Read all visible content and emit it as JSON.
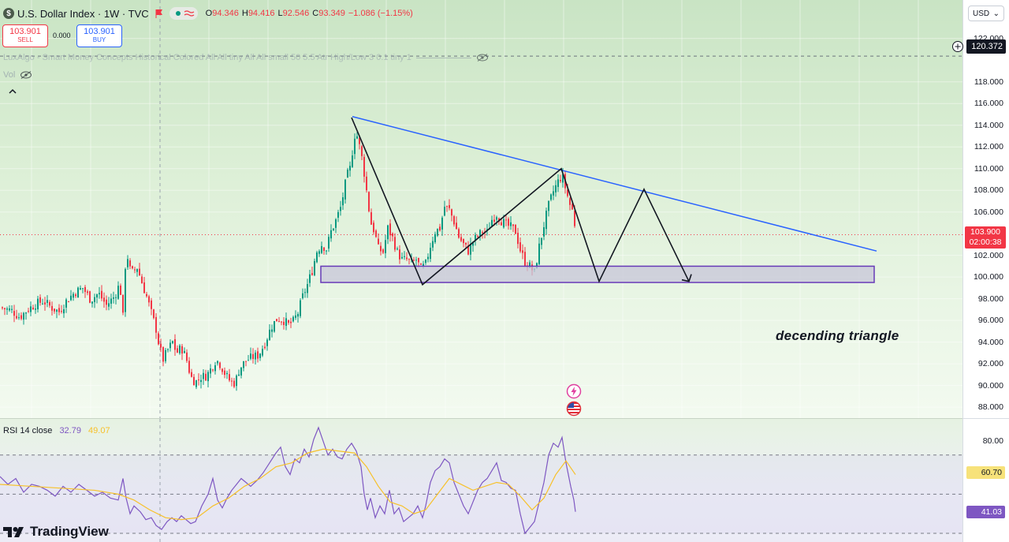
{
  "header": {
    "symbol_logo": "$",
    "symbol_title": "U.S. Dollar Index · 1W · TVC",
    "ohlc": [
      {
        "key": "O",
        "value": "94.346"
      },
      {
        "key": "H",
        "value": "94.416"
      },
      {
        "key": "L",
        "value": "92.546"
      },
      {
        "key": "C",
        "value": "93.349"
      },
      {
        "key": "",
        "value": "−1.086 (−1.15%)"
      }
    ],
    "status_icon": "waves-icon"
  },
  "trade": {
    "sell_price": "103.901",
    "sell_label": "SELL",
    "spread": "0.000",
    "buy_price": "103.901",
    "buy_label": "BUY"
  },
  "indicators": {
    "luxalgo": "LuxAlgo - Smart Money Concepts Historical Colored All All tiny All All small 50 5.5 Atr High/Low 3 0.1 tiny 1",
    "vol": "Vol"
  },
  "price_scale": {
    "currency": "USD",
    "crosshair_price": "120.372",
    "last_price": "103.900",
    "countdown": "02:00:38",
    "ticks": [
      "122.000",
      "118.000",
      "116.000",
      "114.000",
      "112.000",
      "110.000",
      "108.000",
      "106.000",
      "102.000",
      "100.000",
      "98.000",
      "96.000",
      "94.000",
      "92.000",
      "90.000",
      "88.000"
    ]
  },
  "annotation": {
    "pattern_label": "decending triangle"
  },
  "rsi": {
    "label": "RSI 14 close",
    "rsi_value": "32.79",
    "ma_value": "49.07",
    "scale_ticks": [
      "80.00"
    ],
    "ma_label": "60.70",
    "value_label": "41.03"
  },
  "branding": {
    "logo_text": "TradingView"
  },
  "colors": {
    "up": "#089981",
    "down": "#f23645",
    "trendline": "#2962ff",
    "rsi_line": "#7e57c2",
    "rsi_ma": "#f7c12a",
    "zone_border": "#673ab7"
  },
  "chart_data": {
    "type": "candlestick",
    "timeframe": "1W",
    "ylim": [
      87.5,
      123.0
    ],
    "close_path": [
      [
        0,
        97.2
      ],
      [
        15,
        96.9
      ],
      [
        25,
        96.3
      ],
      [
        35,
        97.0
      ],
      [
        45,
        97.5
      ],
      [
        55,
        97.8
      ],
      [
        65,
        97.2
      ],
      [
        75,
        96.8
      ],
      [
        85,
        97.9
      ],
      [
        95,
        98.6
      ],
      [
        105,
        99.0
      ],
      [
        115,
        97.9
      ],
      [
        125,
        98.5
      ],
      [
        135,
        97.4
      ],
      [
        145,
        98.2
      ],
      [
        152,
        99.4
      ],
      [
        156,
        96.3
      ],
      [
        160,
        102.6
      ],
      [
        166,
        100.3
      ],
      [
        174,
        100.9
      ],
      [
        180,
        99.5
      ],
      [
        186,
        98.2
      ],
      [
        192,
        96.7
      ],
      [
        198,
        95.2
      ],
      [
        202,
        93.6
      ],
      [
        207,
        92.4
      ],
      [
        213,
        93.3
      ],
      [
        219,
        94.0
      ],
      [
        224,
        93.0
      ],
      [
        230,
        93.5
      ],
      [
        236,
        92.6
      ],
      [
        242,
        90.8
      ],
      [
        248,
        90.3
      ],
      [
        255,
        90.8
      ],
      [
        262,
        90.9
      ],
      [
        268,
        91.6
      ],
      [
        274,
        92.4
      ],
      [
        280,
        91.9
      ],
      [
        286,
        91.0
      ],
      [
        292,
        90.4
      ],
      [
        298,
        90.2
      ],
      [
        304,
        91.6
      ],
      [
        312,
        92.3
      ],
      [
        320,
        92.6
      ],
      [
        328,
        92.8
      ],
      [
        336,
        93.9
      ],
      [
        344,
        95.4
      ],
      [
        352,
        96.2
      ],
      [
        360,
        96.0
      ],
      [
        366,
        95.6
      ],
      [
        372,
        95.9
      ],
      [
        378,
        96.7
      ],
      [
        384,
        98.2
      ],
      [
        390,
        99.3
      ],
      [
        396,
        100.6
      ],
      [
        402,
        102.4
      ],
      [
        408,
        103.0
      ],
      [
        414,
        102.6
      ],
      [
        420,
        104.2
      ],
      [
        426,
        105.2
      ],
      [
        432,
        106.4
      ],
      [
        436,
        107.8
      ],
      [
        440,
        109.3
      ],
      [
        444,
        110.0
      ],
      [
        448,
        112.1
      ],
      [
        451,
        113.6
      ],
      [
        455,
        112.4
      ],
      [
        459,
        111.0
      ],
      [
        462,
        109.6
      ],
      [
        466,
        107.4
      ],
      [
        470,
        105.1
      ],
      [
        475,
        104.2
      ],
      [
        480,
        102.6
      ],
      [
        486,
        102.3
      ],
      [
        492,
        104.5
      ],
      [
        498,
        103.6
      ],
      [
        504,
        102.3
      ],
      [
        510,
        101.6
      ],
      [
        516,
        101.6
      ],
      [
        522,
        101.3
      ],
      [
        528,
        101.6
      ],
      [
        534,
        100.7
      ],
      [
        540,
        101.2
      ],
      [
        546,
        102.9
      ],
      [
        552,
        104.2
      ],
      [
        558,
        104.5
      ],
      [
        564,
        106.5
      ],
      [
        570,
        106.2
      ],
      [
        576,
        105.1
      ],
      [
        582,
        103.7
      ],
      [
        588,
        103.0
      ],
      [
        594,
        102.4
      ],
      [
        600,
        103.3
      ],
      [
        606,
        103.8
      ],
      [
        612,
        104.2
      ],
      [
        618,
        104.1
      ],
      [
        624,
        105.3
      ],
      [
        630,
        105.8
      ],
      [
        636,
        105.2
      ],
      [
        642,
        104.8
      ],
      [
        648,
        104.6
      ],
      [
        654,
        104.2
      ],
      [
        660,
        102.5
      ],
      [
        666,
        101.4
      ],
      [
        672,
        101.0
      ],
      [
        678,
        100.4
      ],
      [
        684,
        102.8
      ],
      [
        690,
        104.8
      ],
      [
        696,
        106.6
      ],
      [
        702,
        107.9
      ],
      [
        708,
        108.8
      ],
      [
        713,
        109.4
      ],
      [
        718,
        108.0
      ],
      [
        724,
        106.4
      ],
      [
        728,
        105.9
      ],
      [
        730,
        103.9
      ]
    ],
    "trendline": [
      [
        447,
        114.8
      ],
      [
        1112,
        102.4
      ]
    ],
    "support_zone": {
      "x_start": 407,
      "x_end": 1109,
      "y_low": 99.5,
      "y_high": 101.0
    },
    "projection_path": [
      [
        446,
        114.7
      ],
      [
        536,
        99.3
      ],
      [
        712,
        110.0
      ],
      [
        760,
        99.6
      ],
      [
        817,
        108.1
      ],
      [
        874,
        99.6
      ]
    ],
    "rsi_ylim": [
      28,
      86
    ],
    "rsi_path": [
      [
        0,
        59
      ],
      [
        10,
        55
      ],
      [
        20,
        58
      ],
      [
        30,
        51
      ],
      [
        40,
        55
      ],
      [
        50,
        54
      ],
      [
        60,
        52
      ],
      [
        70,
        49
      ],
      [
        80,
        54
      ],
      [
        90,
        51
      ],
      [
        100,
        55
      ],
      [
        110,
        52
      ],
      [
        120,
        49
      ],
      [
        130,
        51
      ],
      [
        140,
        48
      ],
      [
        150,
        47
      ],
      [
        156,
        58
      ],
      [
        160,
        48
      ],
      [
        165,
        40
      ],
      [
        170,
        44
      ],
      [
        178,
        41
      ],
      [
        185,
        37
      ],
      [
        192,
        38
      ],
      [
        198,
        34
      ],
      [
        205,
        32
      ],
      [
        212,
        36
      ],
      [
        218,
        38
      ],
      [
        224,
        36
      ],
      [
        230,
        39
      ],
      [
        236,
        37
      ],
      [
        242,
        35
      ],
      [
        248,
        36
      ],
      [
        256,
        44
      ],
      [
        264,
        50
      ],
      [
        270,
        58
      ],
      [
        276,
        47
      ],
      [
        282,
        43
      ],
      [
        288,
        48
      ],
      [
        294,
        52
      ],
      [
        300,
        55
      ],
      [
        306,
        58
      ],
      [
        312,
        56
      ],
      [
        318,
        54
      ],
      [
        326,
        57
      ],
      [
        334,
        61
      ],
      [
        342,
        66
      ],
      [
        350,
        71
      ],
      [
        356,
        74
      ],
      [
        362,
        64
      ],
      [
        368,
        60
      ],
      [
        374,
        68
      ],
      [
        380,
        66
      ],
      [
        386,
        73
      ],
      [
        392,
        69
      ],
      [
        398,
        78
      ],
      [
        404,
        84
      ],
      [
        410,
        77
      ],
      [
        416,
        70
      ],
      [
        422,
        73
      ],
      [
        428,
        69
      ],
      [
        434,
        68
      ],
      [
        440,
        73
      ],
      [
        446,
        76
      ],
      [
        452,
        72
      ],
      [
        458,
        64
      ],
      [
        462,
        50
      ],
      [
        466,
        42
      ],
      [
        470,
        48
      ],
      [
        476,
        38
      ],
      [
        482,
        44
      ],
      [
        488,
        40
      ],
      [
        494,
        52
      ],
      [
        500,
        40
      ],
      [
        506,
        43
      ],
      [
        512,
        36
      ],
      [
        518,
        38
      ],
      [
        524,
        40
      ],
      [
        530,
        44
      ],
      [
        536,
        38
      ],
      [
        540,
        44
      ],
      [
        546,
        56
      ],
      [
        552,
        62
      ],
      [
        558,
        64
      ],
      [
        564,
        68
      ],
      [
        570,
        66
      ],
      [
        576,
        56
      ],
      [
        582,
        50
      ],
      [
        588,
        44
      ],
      [
        594,
        40
      ],
      [
        600,
        46
      ],
      [
        606,
        52
      ],
      [
        612,
        56
      ],
      [
        618,
        58
      ],
      [
        624,
        62
      ],
      [
        630,
        66
      ],
      [
        636,
        57
      ],
      [
        642,
        56
      ],
      [
        648,
        53
      ],
      [
        654,
        52
      ],
      [
        660,
        40
      ],
      [
        666,
        30
      ],
      [
        672,
        33
      ],
      [
        678,
        36
      ],
      [
        684,
        46
      ],
      [
        690,
        56
      ],
      [
        696,
        70
      ],
      [
        702,
        76
      ],
      [
        708,
        74
      ],
      [
        713,
        79
      ],
      [
        718,
        66
      ],
      [
        724,
        54
      ],
      [
        728,
        47
      ],
      [
        730,
        41
      ]
    ],
    "rsi_ma_path": [
      [
        0,
        55
      ],
      [
        40,
        54
      ],
      [
        80,
        53
      ],
      [
        120,
        52
      ],
      [
        150,
        50
      ],
      [
        170,
        47
      ],
      [
        190,
        42
      ],
      [
        210,
        38
      ],
      [
        230,
        37
      ],
      [
        250,
        38
      ],
      [
        270,
        44
      ],
      [
        290,
        48
      ],
      [
        310,
        54
      ],
      [
        330,
        58
      ],
      [
        350,
        64
      ],
      [
        370,
        66
      ],
      [
        390,
        71
      ],
      [
        410,
        73
      ],
      [
        430,
        72
      ],
      [
        450,
        71
      ],
      [
        465,
        64
      ],
      [
        480,
        54
      ],
      [
        495,
        46
      ],
      [
        510,
        44
      ],
      [
        525,
        40
      ],
      [
        540,
        42
      ],
      [
        555,
        50
      ],
      [
        570,
        58
      ],
      [
        585,
        55
      ],
      [
        600,
        52
      ],
      [
        615,
        54
      ],
      [
        630,
        56
      ],
      [
        645,
        55
      ],
      [
        660,
        49
      ],
      [
        675,
        42
      ],
      [
        690,
        48
      ],
      [
        705,
        60
      ],
      [
        718,
        67
      ],
      [
        730,
        60
      ]
    ]
  }
}
